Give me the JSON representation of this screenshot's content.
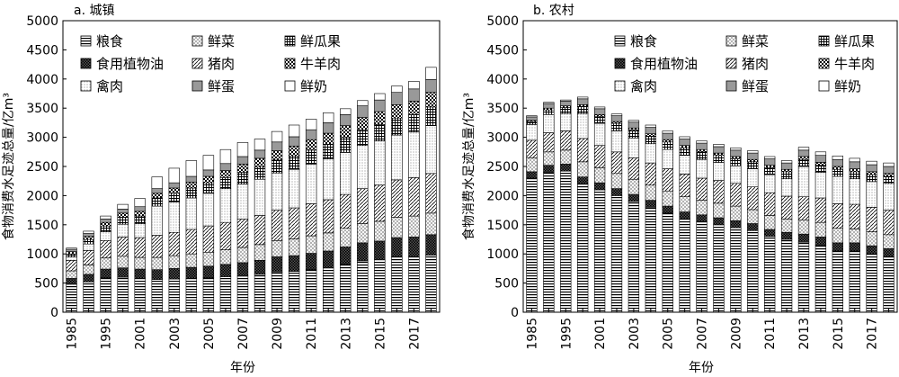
{
  "chart_data": [
    {
      "type": "bar",
      "stacked": true,
      "title": "a. 城镇",
      "xlabel": "年份",
      "ylabel": "食物消费水足迹总量/亿m³",
      "ylim": [
        0,
        5000
      ],
      "yticks": [
        0,
        500,
        1000,
        1500,
        2000,
        2500,
        3000,
        3500,
        4000,
        4500,
        5000
      ],
      "categories": [
        "1985",
        "1990",
        "1995",
        "2000",
        "2001",
        "2002",
        "2003",
        "2004",
        "2005",
        "2006",
        "2007",
        "2008",
        "2009",
        "2010",
        "2011",
        "2012",
        "2013",
        "2014",
        "2015",
        "2016",
        "2017",
        "2018"
      ],
      "tick_labels": [
        "1985",
        "1995",
        "2001",
        "2003",
        "2005",
        "2007",
        "2009",
        "2011",
        "2013",
        "2015",
        "2017"
      ],
      "legend_position": "top-left",
      "series": [
        {
          "name": "粮食",
          "values": [
            480,
            520,
            590,
            600,
            580,
            560,
            570,
            580,
            590,
            610,
            620,
            650,
            690,
            700,
            730,
            760,
            820,
            880,
            900,
            950,
            950,
            980
          ]
        },
        {
          "name": "食用植物油",
          "values": [
            100,
            130,
            150,
            160,
            160,
            170,
            180,
            190,
            200,
            210,
            230,
            240,
            260,
            270,
            280,
            290,
            300,
            310,
            320,
            330,
            340,
            350
          ]
        },
        {
          "name": "鲜菜",
          "values": [
            130,
            160,
            190,
            200,
            200,
            210,
            220,
            230,
            240,
            250,
            260,
            270,
            280,
            290,
            300,
            310,
            320,
            330,
            340,
            350,
            360,
            370
          ]
        },
        {
          "name": "猪肉",
          "values": [
            180,
            250,
            300,
            330,
            340,
            380,
            400,
            420,
            450,
            470,
            490,
            500,
            520,
            530,
            550,
            570,
            580,
            600,
            620,
            640,
            660,
            680
          ]
        },
        {
          "name": "禽肉",
          "values": [
            60,
            110,
            150,
            220,
            240,
            500,
            520,
            540,
            560,
            580,
            600,
            620,
            640,
            660,
            680,
            700,
            720,
            740,
            760,
            770,
            780,
            820
          ]
        },
        {
          "name": "鲜瓜果",
          "values": [
            50,
            80,
            100,
            120,
            130,
            140,
            150,
            170,
            180,
            190,
            200,
            210,
            220,
            230,
            240,
            250,
            260,
            270,
            280,
            290,
            300,
            320
          ]
        },
        {
          "name": "牛羊肉",
          "values": [
            40,
            50,
            60,
            70,
            80,
            80,
            90,
            100,
            110,
            120,
            140,
            150,
            160,
            170,
            180,
            190,
            200,
            210,
            220,
            230,
            230,
            250
          ]
        },
        {
          "name": "鲜蛋",
          "values": [
            40,
            50,
            60,
            70,
            80,
            80,
            90,
            100,
            110,
            120,
            130,
            140,
            150,
            160,
            170,
            180,
            190,
            200,
            200,
            210,
            210,
            220
          ]
        },
        {
          "name": "鲜奶",
          "values": [
            20,
            40,
            50,
            80,
            140,
            200,
            250,
            270,
            250,
            240,
            240,
            190,
            180,
            200,
            180,
            170,
            100,
            90,
            110,
            110,
            130,
            210
          ]
        }
      ]
    },
    {
      "type": "bar",
      "stacked": true,
      "title": "b. 农村",
      "xlabel": "年份",
      "ylabel": "食物消费水足迹总量/亿m³",
      "ylim": [
        0,
        5000
      ],
      "yticks": [
        0,
        500,
        1000,
        1500,
        2000,
        2500,
        3000,
        3500,
        4000,
        4500,
        5000
      ],
      "categories": [
        "1985",
        "1990",
        "1995",
        "2000",
        "2001",
        "2002",
        "2003",
        "2004",
        "2005",
        "2006",
        "2007",
        "2008",
        "2009",
        "2010",
        "2011",
        "2012",
        "2013",
        "2014",
        "2015",
        "2016",
        "2017",
        "2018"
      ],
      "tick_labels": [
        "1985",
        "1995",
        "2001",
        "2003",
        "2005",
        "2007",
        "2009",
        "2011",
        "2013",
        "2015",
        "2017"
      ],
      "legend_position": "top-right",
      "series": [
        {
          "name": "粮食",
          "values": [
            2300,
            2400,
            2420,
            2200,
            2100,
            2000,
            1900,
            1800,
            1700,
            1600,
            1550,
            1500,
            1450,
            1400,
            1300,
            1250,
            1200,
            1150,
            1050,
            1050,
            1000,
            950
          ]
        },
        {
          "name": "食用植物油",
          "values": [
            110,
            120,
            120,
            120,
            120,
            120,
            120,
            120,
            120,
            120,
            120,
            120,
            120,
            120,
            120,
            120,
            140,
            140,
            140,
            140,
            140,
            140
          ]
        },
        {
          "name": "鲜菜",
          "values": [
            240,
            230,
            240,
            260,
            260,
            260,
            260,
            260,
            260,
            260,
            250,
            250,
            250,
            240,
            240,
            230,
            240,
            250,
            250,
            240,
            240,
            240
          ]
        },
        {
          "name": "猪肉",
          "values": [
            300,
            330,
            330,
            400,
            380,
            370,
            370,
            380,
            380,
            390,
            380,
            390,
            390,
            390,
            390,
            390,
            400,
            420,
            420,
            420,
            420,
            420
          ]
        },
        {
          "name": "禽肉",
          "values": [
            270,
            310,
            300,
            430,
            380,
            360,
            340,
            330,
            330,
            320,
            320,
            310,
            300,
            310,
            310,
            300,
            520,
            440,
            470,
            440,
            440,
            460
          ]
        },
        {
          "name": "鲜瓜果",
          "values": [
            50,
            80,
            100,
            120,
            120,
            130,
            130,
            130,
            130,
            130,
            130,
            120,
            120,
            120,
            120,
            120,
            120,
            120,
            120,
            120,
            120,
            120
          ]
        },
        {
          "name": "牛羊肉",
          "values": [
            20,
            30,
            30,
            30,
            30,
            30,
            40,
            40,
            40,
            40,
            40,
            40,
            40,
            40,
            40,
            40,
            50,
            50,
            50,
            50,
            50,
            50
          ]
        },
        {
          "name": "鲜蛋",
          "values": [
            60,
            80,
            80,
            100,
            100,
            100,
            100,
            110,
            110,
            110,
            110,
            110,
            110,
            110,
            110,
            110,
            110,
            120,
            120,
            120,
            120,
            120
          ]
        },
        {
          "name": "鲜奶",
          "values": [
            20,
            20,
            20,
            30,
            30,
            30,
            30,
            40,
            40,
            40,
            40,
            40,
            40,
            40,
            40,
            40,
            50,
            60,
            60,
            60,
            60,
            60
          ]
        }
      ]
    }
  ]
}
